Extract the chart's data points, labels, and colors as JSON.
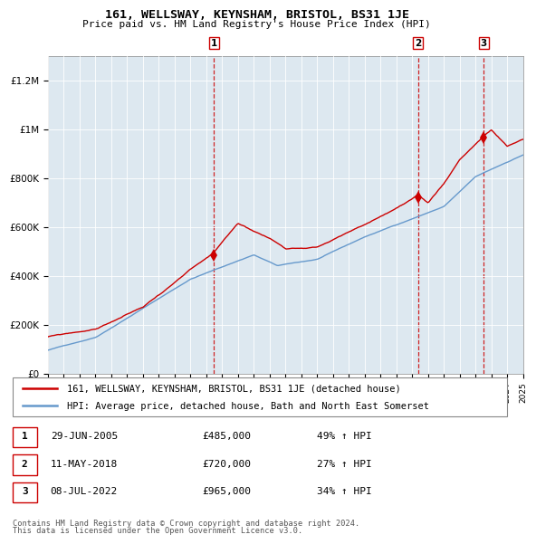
{
  "title": "161, WELLSWAY, KEYNSHAM, BRISTOL, BS31 1JE",
  "subtitle": "Price paid vs. HM Land Registry's House Price Index (HPI)",
  "legend_line1": "161, WELLSWAY, KEYNSHAM, BRISTOL, BS31 1JE (detached house)",
  "legend_line2": "HPI: Average price, detached house, Bath and North East Somerset",
  "footer1": "Contains HM Land Registry data © Crown copyright and database right 2024.",
  "footer2": "This data is licensed under the Open Government Licence v3.0.",
  "sale_color": "#cc0000",
  "hpi_color": "#6699cc",
  "vline_color": "#cc0000",
  "bg_color": "#dde8f0",
  "ylim": [
    0,
    1300000
  ],
  "yticks": [
    0,
    200000,
    400000,
    600000,
    800000,
    1000000,
    1200000
  ],
  "ytick_labels": [
    "£0",
    "£200K",
    "£400K",
    "£600K",
    "£800K",
    "£1M",
    "£1.2M"
  ],
  "sales": [
    {
      "date_num": 2005.49,
      "price": 485000,
      "label": "1"
    },
    {
      "date_num": 2018.36,
      "price": 720000,
      "label": "2"
    },
    {
      "date_num": 2022.52,
      "price": 965000,
      "label": "3"
    }
  ],
  "table_rows": [
    {
      "num": "1",
      "date": "29-JUN-2005",
      "price": "£485,000",
      "pct": "49% ↑ HPI"
    },
    {
      "num": "2",
      "date": "11-MAY-2018",
      "price": "£720,000",
      "pct": "27% ↑ HPI"
    },
    {
      "num": "3",
      "date": "08-JUL-2022",
      "price": "£965,000",
      "pct": "34% ↑ HPI"
    }
  ],
  "xmin": 1995,
  "xmax": 2025
}
